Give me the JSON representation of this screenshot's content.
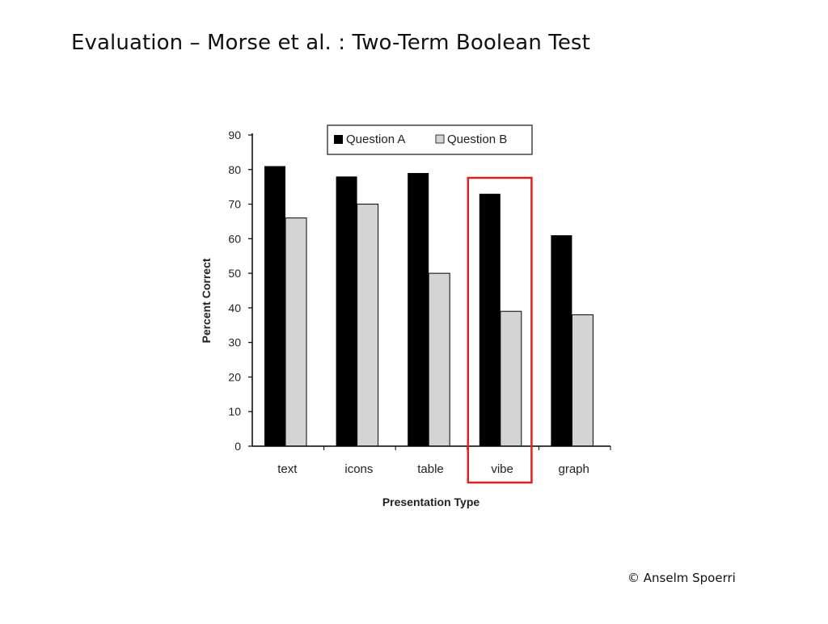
{
  "slide": {
    "title": "Evaluation – Morse et al. : Two-Term Boolean Test",
    "copyright": "© Anselm Spoerri"
  },
  "colors": {
    "question_a": "#000000",
    "question_b": "#d4d4d4",
    "highlight": "#e32020"
  },
  "chart_data": {
    "type": "bar",
    "title": "",
    "xlabel": "Presentation Type",
    "ylabel": "Percent Correct",
    "ylim": [
      0,
      90
    ],
    "yticks": [
      0,
      10,
      20,
      30,
      40,
      50,
      60,
      70,
      80,
      90
    ],
    "categories": [
      "text",
      "icons",
      "table",
      "vibe",
      "graph"
    ],
    "series": [
      {
        "name": "Question A",
        "values": [
          81,
          78,
          79,
          73,
          61
        ]
      },
      {
        "name": "Question B",
        "values": [
          66,
          70,
          50,
          39,
          38
        ]
      }
    ],
    "legend": "top",
    "grid": false,
    "highlighted_category": "vibe"
  }
}
